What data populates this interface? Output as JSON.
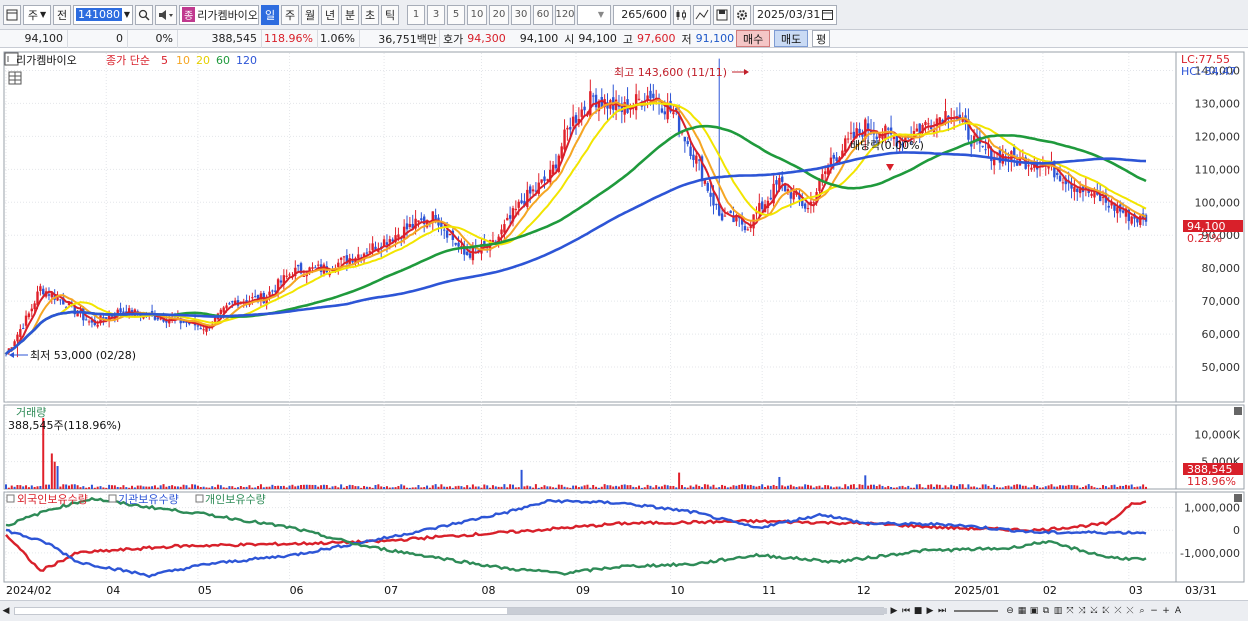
{
  "toolbar": {
    "cycle_label": "주",
    "prev_label": "전",
    "code": "141080",
    "name_tag": "종",
    "name": "리가켐바이오",
    "periods": [
      "일",
      "주",
      "월",
      "년",
      "분",
      "초",
      "틱"
    ],
    "active_period": "일",
    "intervals": [
      "1",
      "3",
      "5",
      "10",
      "20",
      "30",
      "60",
      "120"
    ],
    "count_value": "265",
    "count_max": "/600",
    "date": "2025/03/31"
  },
  "info": {
    "price": "94,100",
    "change": "0",
    "change_pct": "0%",
    "volume": "388,545",
    "volume_ratio": "118.96%",
    "turnover": "1.06%",
    "amount": "36,751백만",
    "quote_label": "호가",
    "quote_value": "94,300",
    "current": "94,100",
    "open_label": "시",
    "open_value": "94,100",
    "high_label": "고",
    "high_value": "97,600",
    "low_label": "저",
    "low_value": "91,100",
    "buy_label": "매수",
    "sell_label": "매도",
    "eval_label": "평"
  },
  "price_panel": {
    "title": "리가켐바이오",
    "legend_type": "종가 단순",
    "ma_periods": [
      "5",
      "10",
      "20",
      "60",
      "120"
    ],
    "ma_colors": [
      "#d8202a",
      "#f5a623",
      "#f2e500",
      "#1f9a3c",
      "#2d55d6"
    ],
    "lc": "LC:77.55",
    "hc": "HC:-34.47",
    "high_note": "최고 143,600 (11/11)",
    "low_note": "최저 53,000 (02/28)",
    "dividend_note": "배당락(0.00%)",
    "last_price": "94,100",
    "last_pct": "0.21%"
  },
  "volume_panel": {
    "title": "거래량",
    "value_note": "388,545주(118.96%)",
    "ticks": [
      "10,000K",
      "5,000K"
    ],
    "last_value": "388,545",
    "last_pct": "118.96%"
  },
  "holders_panel": {
    "series": [
      {
        "name": "외국인보유수량",
        "color": "#d8202a"
      },
      {
        "name": "기관보유수량",
        "color": "#2d55d6"
      },
      {
        "name": "개인보유수량",
        "color": "#2e8b57"
      }
    ],
    "ticks": [
      "1,000,000",
      "0",
      "-1,000,000"
    ]
  },
  "x_axis": {
    "labels": [
      "2024/02",
      "04",
      "05",
      "06",
      "07",
      "08",
      "09",
      "10",
      "11",
      "12",
      "2025/01",
      "02",
      "03"
    ],
    "right_label": "03/31"
  },
  "chart_data": [
    {
      "type": "candlestick",
      "title": "리가켐바이오",
      "ylim": [
        40000,
        145000
      ],
      "y_ticks": [
        50000,
        60000,
        70000,
        80000,
        90000,
        100000,
        110000,
        120000,
        130000,
        140000
      ],
      "x_labels": [
        "2024/02",
        "04",
        "05",
        "06",
        "07",
        "08",
        "09",
        "10",
        "11",
        "12",
        "2025/01",
        "02",
        "03"
      ],
      "close_anchors": [
        [
          0,
          54000
        ],
        [
          8,
          66000
        ],
        [
          12,
          74000
        ],
        [
          20,
          70000
        ],
        [
          30,
          63000
        ],
        [
          40,
          67000
        ],
        [
          55,
          65000
        ],
        [
          70,
          62000
        ],
        [
          80,
          70000
        ],
        [
          90,
          71000
        ],
        [
          100,
          79000
        ],
        [
          112,
          80000
        ],
        [
          125,
          85000
        ],
        [
          140,
          92000
        ],
        [
          150,
          96000
        ],
        [
          160,
          84000
        ],
        [
          170,
          87000
        ],
        [
          180,
          100000
        ],
        [
          190,
          108000
        ],
        [
          197,
          124000
        ],
        [
          205,
          132000
        ],
        [
          215,
          128000
        ],
        [
          225,
          133000
        ],
        [
          233,
          127000
        ],
        [
          241,
          113000
        ],
        [
          249,
          96000
        ],
        [
          259,
          93000
        ],
        [
          270,
          106000
        ],
        [
          280,
          98000
        ],
        [
          288,
          113000
        ],
        [
          300,
          123000
        ],
        [
          312,
          119000
        ],
        [
          322,
          124000
        ],
        [
          330,
          128000
        ],
        [
          340,
          116000
        ],
        [
          352,
          113000
        ],
        [
          362,
          112000
        ],
        [
          372,
          106000
        ],
        [
          382,
          101000
        ],
        [
          392,
          96000
        ],
        [
          398,
          94100
        ]
      ],
      "ma_periods": [
        5,
        10,
        20,
        60,
        120
      ],
      "high": 143600,
      "low": 53000,
      "last": 94100
    },
    {
      "type": "bar",
      "title": "거래량",
      "ylim": [
        0,
        15000
      ],
      "y_ticks": [
        5000,
        10000
      ],
      "unit": "K",
      "last_value": 388545,
      "spikes": [
        [
          13,
          13000
        ],
        [
          16,
          6500
        ],
        [
          17,
          5000
        ],
        [
          18,
          4200
        ],
        [
          180,
          3500
        ],
        [
          235,
          3000
        ],
        [
          270,
          2200
        ],
        [
          300,
          2500
        ]
      ]
    },
    {
      "type": "line",
      "title": "외국인/기관/개인 보유수량",
      "ylim": [
        -2200000,
        1600000
      ],
      "y_ticks": [
        1000000,
        0,
        -1000000
      ],
      "series": [
        {
          "name": "외국인보유수량",
          "anchors": [
            [
              0,
              -200000
            ],
            [
              12,
              -1800000
            ],
            [
              25,
              -1000000
            ],
            [
              60,
              -700000
            ],
            [
              100,
              -600000
            ],
            [
              130,
              -500000
            ],
            [
              150,
              -300000
            ],
            [
              180,
              -50000
            ],
            [
              215,
              300000
            ],
            [
              240,
              350000
            ],
            [
              260,
              400000
            ],
            [
              300,
              300000
            ],
            [
              330,
              100000
            ],
            [
              360,
              0
            ],
            [
              385,
              300000
            ],
            [
              393,
              1200000
            ],
            [
              398,
              1250000
            ]
          ]
        },
        {
          "name": "기관보유수량",
          "anchors": [
            [
              0,
              0
            ],
            [
              15,
              -600000
            ],
            [
              25,
              -1400000
            ],
            [
              50,
              -2000000
            ],
            [
              70,
              -1500000
            ],
            [
              100,
              -1100000
            ],
            [
              130,
              -400000
            ],
            [
              150,
              100000
            ],
            [
              175,
              800000
            ],
            [
              190,
              1300000
            ],
            [
              215,
              1200000
            ],
            [
              240,
              800000
            ],
            [
              262,
              100000
            ],
            [
              285,
              700000
            ],
            [
              300,
              300000
            ],
            [
              330,
              250000
            ],
            [
              360,
              -100000
            ],
            [
              398,
              -100000
            ]
          ]
        },
        {
          "name": "개인보유수량",
          "anchors": [
            [
              0,
              200000
            ],
            [
              15,
              900000
            ],
            [
              30,
              1400000
            ],
            [
              45,
              1100000
            ],
            [
              70,
              700000
            ],
            [
              100,
              100000
            ],
            [
              125,
              -700000
            ],
            [
              150,
              -1200000
            ],
            [
              175,
              -1700000
            ],
            [
              195,
              -1900000
            ],
            [
              215,
              -1600000
            ],
            [
              240,
              -1500000
            ],
            [
              262,
              -1100000
            ],
            [
              290,
              -1400000
            ],
            [
              320,
              -900000
            ],
            [
              350,
              -800000
            ],
            [
              363,
              -500000
            ],
            [
              385,
              -1200000
            ],
            [
              398,
              -1300000
            ]
          ]
        }
      ]
    }
  ]
}
